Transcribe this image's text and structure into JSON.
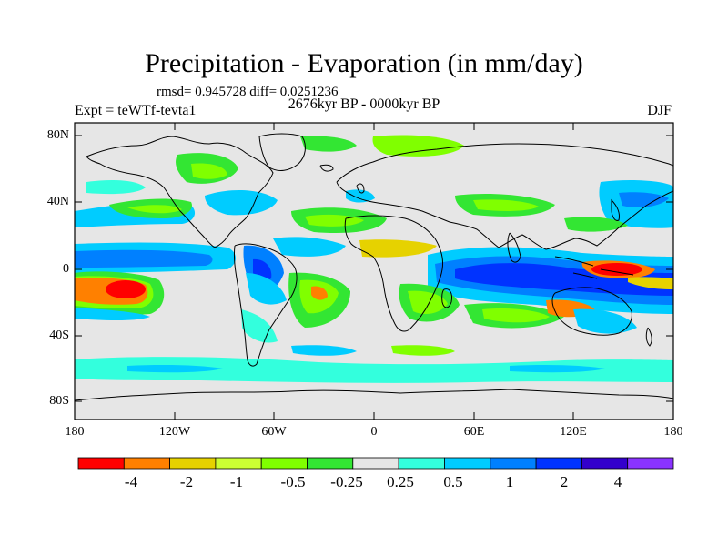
{
  "title": "Precipitation - Evaporation (in mm/day)",
  "stats_line": "rmsd= 0.945728 diff= 0.0251236",
  "period": "2676kyr BP - 0000kyr BP",
  "experiment": "Expt = teWTf-tevta1",
  "season": "DJF",
  "y_ticks": [
    "80N",
    "40N",
    "0",
    "40S",
    "80S"
  ],
  "x_ticks": [
    "180",
    "120W",
    "60W",
    "0",
    "60E",
    "120E",
    "180"
  ],
  "colorbar": {
    "colors": [
      "#ff0000",
      "#ff8000",
      "#e6d200",
      "#ccff33",
      "#80ff00",
      "#33e633",
      "#e6e6e6",
      "#33ffdd",
      "#00ccff",
      "#0080ff",
      "#0033ff",
      "#3300cc",
      "#8a33ff"
    ],
    "labels": [
      "-4",
      "-2",
      "-1",
      "-0.5",
      "-0.25",
      "0.25",
      "0.5",
      "1",
      "2",
      "4"
    ]
  },
  "colors": {
    "background_field": "#e6e6e6",
    "coastline": "#000000"
  }
}
